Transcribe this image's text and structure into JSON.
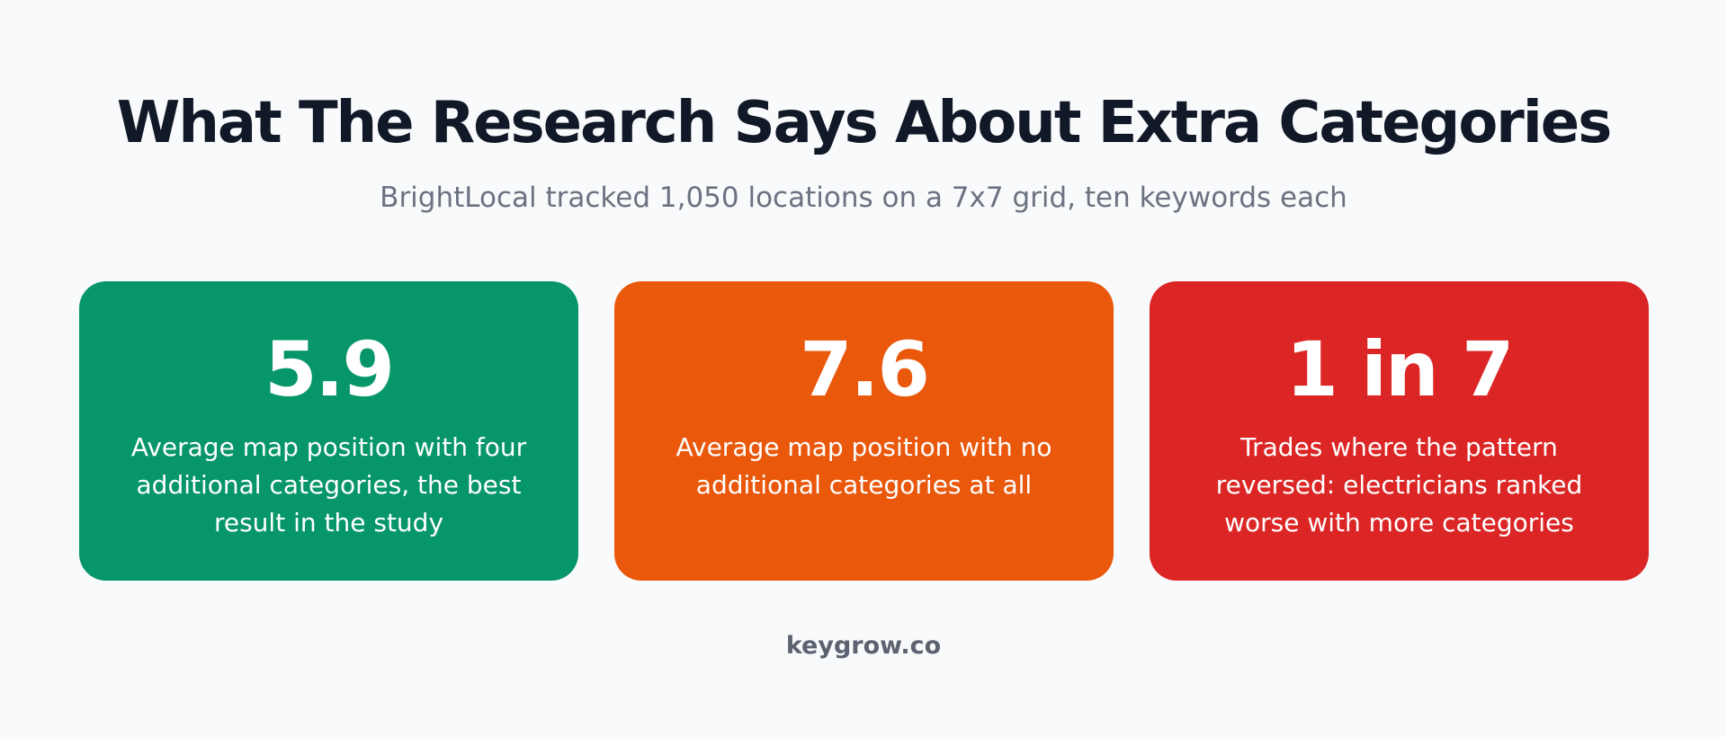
{
  "header": {
    "title": "What The Research Says About Extra Categories",
    "subtitle": "BrightLocal tracked 1,050 locations on a 7x7 grid, ten keywords each"
  },
  "cards": [
    {
      "stat": "5.9",
      "description": "Average map position with four additional categories, the best result in the study",
      "color": "#069669"
    },
    {
      "stat": "7.6",
      "description": "Average map position with no additional categories at all",
      "color": "#ea580c"
    },
    {
      "stat": "1 in 7",
      "description": "Trades where the pattern reversed: electricians ranked worse with more categories",
      "color": "#dc2626"
    }
  ],
  "footer": {
    "text": "keygrow.co"
  }
}
